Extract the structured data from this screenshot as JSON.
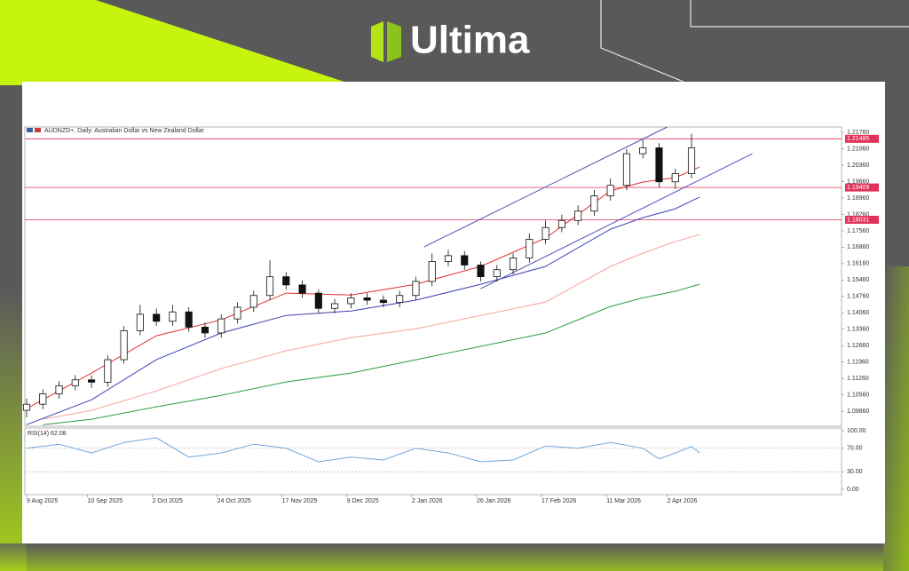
{
  "logo": "Ultima",
  "chart_data": [
    {
      "type": "candlestick",
      "title": "AUDNZD+, Daily:  Australian Dollar vs New Zealand Dollar",
      "x": [
        0,
        4,
        8,
        12,
        16,
        20,
        24,
        28,
        32,
        36,
        40,
        44,
        48,
        52,
        56,
        60,
        64,
        68,
        72,
        76,
        80,
        84,
        88,
        92,
        96,
        100,
        104,
        108,
        112,
        116,
        120,
        124,
        128,
        132,
        136,
        140,
        144,
        148,
        152,
        156,
        160,
        164
      ],
      "open": [
        1.099,
        1.1016,
        1.106,
        1.1095,
        1.112,
        1.111,
        1.1206,
        1.133,
        1.14,
        1.137,
        1.141,
        1.1345,
        1.132,
        1.138,
        1.143,
        1.148,
        1.156,
        1.1525,
        1.149,
        1.1425,
        1.1445,
        1.147,
        1.146,
        1.145,
        1.148,
        1.154,
        1.1625,
        1.165,
        1.161,
        1.156,
        1.159,
        1.164,
        1.172,
        1.177,
        1.18,
        1.184,
        1.1905,
        1.195,
        1.2085,
        1.211,
        1.1965,
        1.2
      ],
      "high": [
        1.104,
        1.108,
        1.1115,
        1.114,
        1.114,
        1.1225,
        1.135,
        1.144,
        1.1425,
        1.144,
        1.143,
        1.1365,
        1.14,
        1.145,
        1.15,
        1.163,
        1.158,
        1.1545,
        1.1505,
        1.1465,
        1.149,
        1.149,
        1.148,
        1.15,
        1.156,
        1.166,
        1.1675,
        1.167,
        1.1625,
        1.161,
        1.166,
        1.1745,
        1.18,
        1.1825,
        1.1865,
        1.193,
        1.198,
        1.2105,
        1.2145,
        1.213,
        1.202,
        1.217
      ],
      "low": [
        1.096,
        1.0995,
        1.104,
        1.1075,
        1.1085,
        1.109,
        1.119,
        1.131,
        1.135,
        1.135,
        1.1325,
        1.13,
        1.13,
        1.136,
        1.141,
        1.146,
        1.1505,
        1.147,
        1.1405,
        1.1405,
        1.1425,
        1.144,
        1.143,
        1.143,
        1.146,
        1.152,
        1.1605,
        1.159,
        1.154,
        1.154,
        1.157,
        1.162,
        1.17,
        1.175,
        1.178,
        1.182,
        1.1885,
        1.193,
        1.2065,
        1.194,
        1.1935,
        1.198
      ],
      "close": [
        1.1016,
        1.106,
        1.1095,
        1.112,
        1.111,
        1.1206,
        1.133,
        1.14,
        1.137,
        1.141,
        1.1345,
        1.132,
        1.138,
        1.143,
        1.148,
        1.156,
        1.1525,
        1.149,
        1.1425,
        1.1445,
        1.147,
        1.146,
        1.145,
        1.148,
        1.154,
        1.1625,
        1.165,
        1.161,
        1.156,
        1.159,
        1.164,
        1.172,
        1.177,
        1.18,
        1.184,
        1.1905,
        1.195,
        1.2085,
        1.211,
        1.1965,
        1.2,
        1.211
      ],
      "up_color": "#ffffff",
      "down_color": "#111111",
      "series": [
        {
          "color": "#e0302f",
          "x": [
            0,
            16,
            32,
            48,
            64,
            80,
            96,
            112,
            128,
            144,
            152,
            160,
            166
          ],
          "values": [
            1.0997,
            1.1149,
            1.1308,
            1.1376,
            1.149,
            1.1482,
            1.1528,
            1.1604,
            1.1725,
            1.1926,
            1.1964,
            1.1983,
            1.2028
          ]
        },
        {
          "color": "#3b3fb5",
          "x": [
            0,
            16,
            32,
            48,
            64,
            80,
            96,
            112,
            128,
            144,
            152,
            160,
            166
          ],
          "values": [
            1.0929,
            1.1035,
            1.1206,
            1.132,
            1.1395,
            1.1414,
            1.146,
            1.1528,
            1.1604,
            1.1763,
            1.1812,
            1.185,
            1.19
          ]
        },
        {
          "color": "#f4a59a",
          "x": [
            4,
            16,
            32,
            48,
            64,
            80,
            96,
            112,
            128,
            144,
            152,
            160,
            166
          ],
          "values": [
            1.0952,
            1.099,
            1.1073,
            1.1168,
            1.1244,
            1.13,
            1.1338,
            1.1395,
            1.1452,
            1.1604,
            1.1661,
            1.171,
            1.174
          ]
        },
        {
          "color": "#2e9e3e",
          "x": [
            4,
            16,
            32,
            48,
            64,
            80,
            96,
            112,
            128,
            144,
            152,
            160,
            166
          ],
          "values": [
            1.0929,
            1.0952,
            1.1005,
            1.1054,
            1.1111,
            1.1149,
            1.1206,
            1.1263,
            1.132,
            1.1433,
            1.147,
            1.1498,
            1.1528
          ]
        }
      ],
      "trendlines": [
        {
          "x": [
            98,
            158
          ],
          "values": [
            1.1687,
            1.2199
          ]
        },
        {
          "x": [
            112,
            179
          ],
          "values": [
            1.1509,
            1.2085
          ]
        }
      ],
      "trendline_color": "#5050b0",
      "hlines": {
        "values": [
          1.21485,
          1.19409,
          1.18031
        ],
        "value_labels": [
          "1.21485",
          "1.19409",
          "1.18031"
        ],
        "color": "#e0325a"
      },
      "xlim": [
        0,
        201
      ],
      "ylim": [
        1.0922,
        1.2199
      ],
      "yticks": [
        {
          "value": 1.2176,
          "label": "1.21760"
        },
        {
          "value": 1.2106,
          "label": "1.21060"
        },
        {
          "value": 1.2036,
          "label": "1.20360"
        },
        {
          "value": 1.1966,
          "label": "1.19660"
        },
        {
          "value": 1.1896,
          "label": "1.18960"
        },
        {
          "value": 1.1826,
          "label": "1.18260"
        },
        {
          "value": 1.1756,
          "label": "1.17560"
        },
        {
          "value": 1.1686,
          "label": "1.16860"
        },
        {
          "value": 1.1616,
          "label": "1.16160"
        },
        {
          "value": 1.1546,
          "label": "1.15460"
        },
        {
          "value": 1.1476,
          "label": "1.14760"
        },
        {
          "value": 1.1406,
          "label": "1.14060"
        },
        {
          "value": 1.1336,
          "label": "1.13360"
        },
        {
          "value": 1.1266,
          "label": "1.12660"
        },
        {
          "value": 1.1196,
          "label": "1.11960"
        },
        {
          "value": 1.1126,
          "label": "1.11260"
        },
        {
          "value": 1.1056,
          "label": "1.10560"
        },
        {
          "value": 1.0986,
          "label": "1.09860"
        }
      ],
      "xticks": [
        {
          "value": 0,
          "label": "9 Aug 2025"
        },
        {
          "value": 15,
          "label": "10 Sep 2025"
        },
        {
          "value": 31,
          "label": "2 Oct 2025"
        },
        {
          "value": 47,
          "label": "24 Oct 2025"
        },
        {
          "value": 63,
          "label": "17 Nov 2025"
        },
        {
          "value": 79,
          "label": "9 Dec 2025"
        },
        {
          "value": 95,
          "label": "2 Jan 2026"
        },
        {
          "value": 111,
          "label": "26 Jan 2026"
        },
        {
          "value": 127,
          "label": "17 Feb 2026"
        },
        {
          "value": 143,
          "label": "11 Mar 2026"
        },
        {
          "value": 158,
          "label": "2 Apr 2026"
        }
      ]
    },
    {
      "type": "line",
      "title": "RSI(14) 62.08",
      "x": [
        0,
        8,
        16,
        24,
        32,
        40,
        48,
        56,
        64,
        72,
        80,
        88,
        96,
        104,
        112,
        120,
        128,
        136,
        144,
        152,
        156,
        160,
        164,
        166
      ],
      "values": [
        70,
        77,
        62,
        80,
        88,
        55,
        62,
        77,
        70,
        47,
        55,
        50,
        70,
        62,
        47,
        50,
        74,
        70,
        80,
        70,
        52,
        62,
        73,
        62.08
      ],
      "color": "#6fa8dc",
      "xlim": [
        0,
        201
      ],
      "ylim": [
        0,
        100
      ],
      "levels": [
        70,
        30
      ],
      "yticks": [
        {
          "value": 100,
          "label": "100.00"
        },
        {
          "value": 70,
          "label": "70.00"
        },
        {
          "value": 30,
          "label": "30.00"
        },
        {
          "value": 0,
          "label": "0.00"
        }
      ]
    }
  ]
}
